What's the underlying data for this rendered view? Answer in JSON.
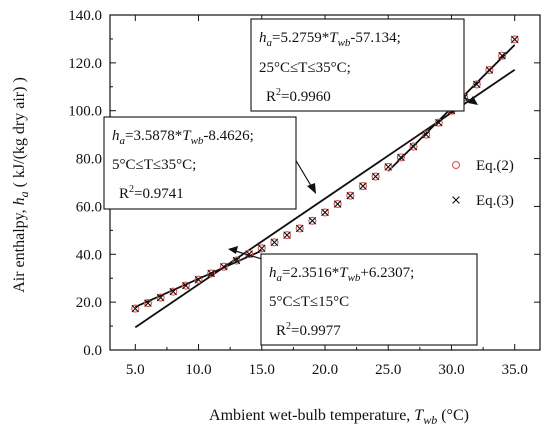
{
  "chart_data": {
    "type": "scatter",
    "xlabel_main": "Ambient wet-bulb temperature, ",
    "xlabel_var": "T",
    "xlabel_sub": "wb",
    "xlabel_unit": " (°C)",
    "ylabel_main": "Air enthalpy, ",
    "ylabel_var": "h",
    "ylabel_sub": "a",
    "ylabel_unit": " ( kJ/(kg dry air) )",
    "xlim": [
      3.0,
      37.0
    ],
    "ylim": [
      0.0,
      140.0
    ],
    "x_ticks": [
      5.0,
      10.0,
      15.0,
      20.0,
      25.0,
      30.0,
      35.0
    ],
    "x_tick_labels": [
      "5.0",
      "10.0",
      "15.0",
      "20.0",
      "25.0",
      "30.0",
      "35.0"
    ],
    "y_ticks": [
      0,
      20,
      40,
      60,
      80,
      100,
      120,
      140
    ],
    "y_tick_labels": [
      "0.0",
      "20.0",
      "40.0",
      "60.0",
      "80.0",
      "100.0",
      "120.0",
      "140.0"
    ],
    "grid": false,
    "legend_position": "right",
    "series": [
      {
        "name": "Eq.(2)",
        "marker": "circle",
        "color": "#d9534f",
        "x": [
          5,
          6,
          7,
          8,
          9,
          10,
          11,
          12,
          13,
          14,
          15,
          16,
          17,
          18,
          19,
          20,
          21,
          22,
          23,
          24,
          25,
          26,
          27,
          28,
          29,
          30,
          31,
          32,
          33,
          34,
          35
        ],
        "y": [
          17.3,
          19.6,
          21.9,
          24.4,
          26.9,
          29.4,
          32.0,
          34.8,
          37.4,
          40.1,
          42.5,
          45.0,
          48.0,
          50.8,
          54.0,
          57.5,
          61.0,
          64.5,
          68.5,
          72.5,
          76.5,
          80.5,
          85.0,
          90.0,
          95.0,
          100.0,
          105.5,
          111.0,
          117.0,
          123.0,
          129.8
        ]
      },
      {
        "name": "Eq.(3)",
        "marker": "cross",
        "color": "#111111",
        "x": [
          5,
          6,
          7,
          8,
          9,
          10,
          11,
          12,
          13,
          14,
          15,
          16,
          17,
          18,
          19,
          20,
          21,
          22,
          23,
          24,
          25,
          26,
          27,
          28,
          29,
          30,
          31,
          32,
          33,
          34,
          35
        ],
        "y": [
          17.3,
          19.6,
          21.9,
          24.4,
          26.9,
          29.4,
          32.0,
          34.8,
          37.4,
          40.1,
          42.5,
          45.0,
          48.0,
          50.8,
          54.0,
          57.5,
          61.0,
          64.5,
          68.5,
          72.5,
          76.5,
          80.5,
          85.0,
          90.0,
          95.0,
          100.0,
          105.5,
          111.0,
          117.0,
          123.0,
          129.8
        ]
      }
    ],
    "fit_lines": [
      {
        "slope": 5.2759,
        "intercept": -57.134,
        "x_range": [
          25.0,
          35.0
        ]
      },
      {
        "slope": 3.5878,
        "intercept": -8.4626,
        "x_range": [
          5.0,
          35.0
        ]
      },
      {
        "slope": 2.3516,
        "intercept": 6.2307,
        "x_range": [
          5.0,
          15.0
        ]
      }
    ],
    "annotations": [
      {
        "line1_var": "h",
        "line1_sub": "a",
        "line1_eq": "=5.2759*",
        "line1_var2": "T",
        "line1_sub2": "wb",
        "line1_tail": "-57.134;",
        "line2": "25°C≤T≤35°C;",
        "line3_r": "R",
        "line3_sup": "2",
        "line3_val": "=0.9960"
      },
      {
        "line1_var": "h",
        "line1_sub": "a",
        "line1_eq": "=3.5878*",
        "line1_var2": "T",
        "line1_sub2": "wb",
        "line1_tail": "-8.4626;",
        "line2": "5°C≤T≤35°C;",
        "line3_r": "R",
        "line3_sup": "2",
        "line3_val": "=0.9741"
      },
      {
        "line1_var": "h",
        "line1_sub": "a",
        "line1_eq": "=2.3516*",
        "line1_var2": "T",
        "line1_sub2": "wb",
        "line1_tail": "+6.2307;",
        "line2": "5°C≤T≤15°C",
        "line3_r": "R",
        "line3_sup": "2",
        "line3_val": "=0.9977"
      }
    ]
  }
}
